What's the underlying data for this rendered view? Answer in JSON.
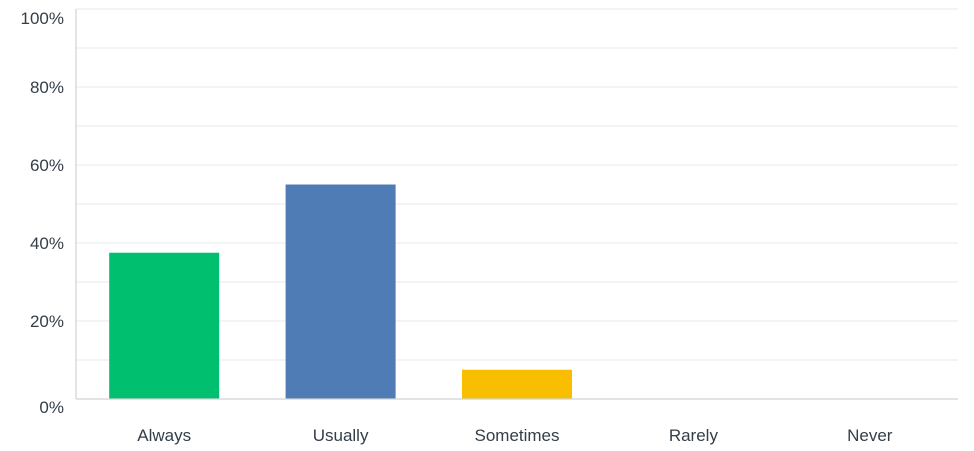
{
  "chart_data": {
    "type": "bar",
    "title": "",
    "xlabel": "",
    "ylabel": "",
    "categories": [
      "Always",
      "Usually",
      "Sometimes",
      "Rarely",
      "Never"
    ],
    "values": [
      37.5,
      55,
      7.5,
      0,
      0
    ],
    "colors": [
      "#00bf6f",
      "#507cb6",
      "#f9be00",
      "#6bc8cd",
      "#b8bfc4"
    ],
    "ylim": [
      0,
      100
    ],
    "yticks": [
      0,
      20,
      40,
      60,
      80,
      100
    ],
    "ytick_labels": [
      "0%",
      "20%",
      "40%",
      "60%",
      "80%",
      "100%"
    ],
    "minor_grid_step": 10,
    "grid": true,
    "legend": "none"
  }
}
